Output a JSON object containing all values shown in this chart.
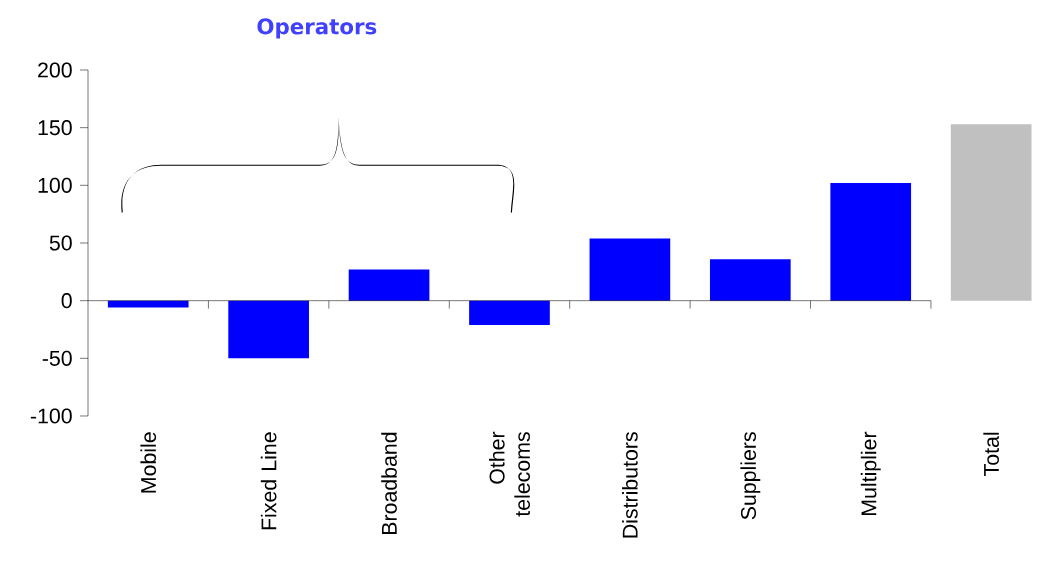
{
  "chart_data": {
    "type": "bar",
    "categories": [
      "Mobile",
      "Fixed Line",
      "Broadband",
      "Other telecoms",
      "Distributors",
      "Suppliers",
      "Multiplier",
      "Total"
    ],
    "values": [
      -6,
      -50,
      27,
      -21,
      54,
      36,
      102,
      153
    ],
    "colors": [
      "#0000ff",
      "#0000ff",
      "#0000ff",
      "#0000ff",
      "#0000ff",
      "#0000ff",
      "#0000ff",
      "#c0c0c0"
    ],
    "ylim": [
      -100,
      200
    ],
    "yticks": [
      -100,
      -50,
      0,
      50,
      100,
      150,
      200
    ],
    "annotations": [
      "Operators"
    ]
  }
}
